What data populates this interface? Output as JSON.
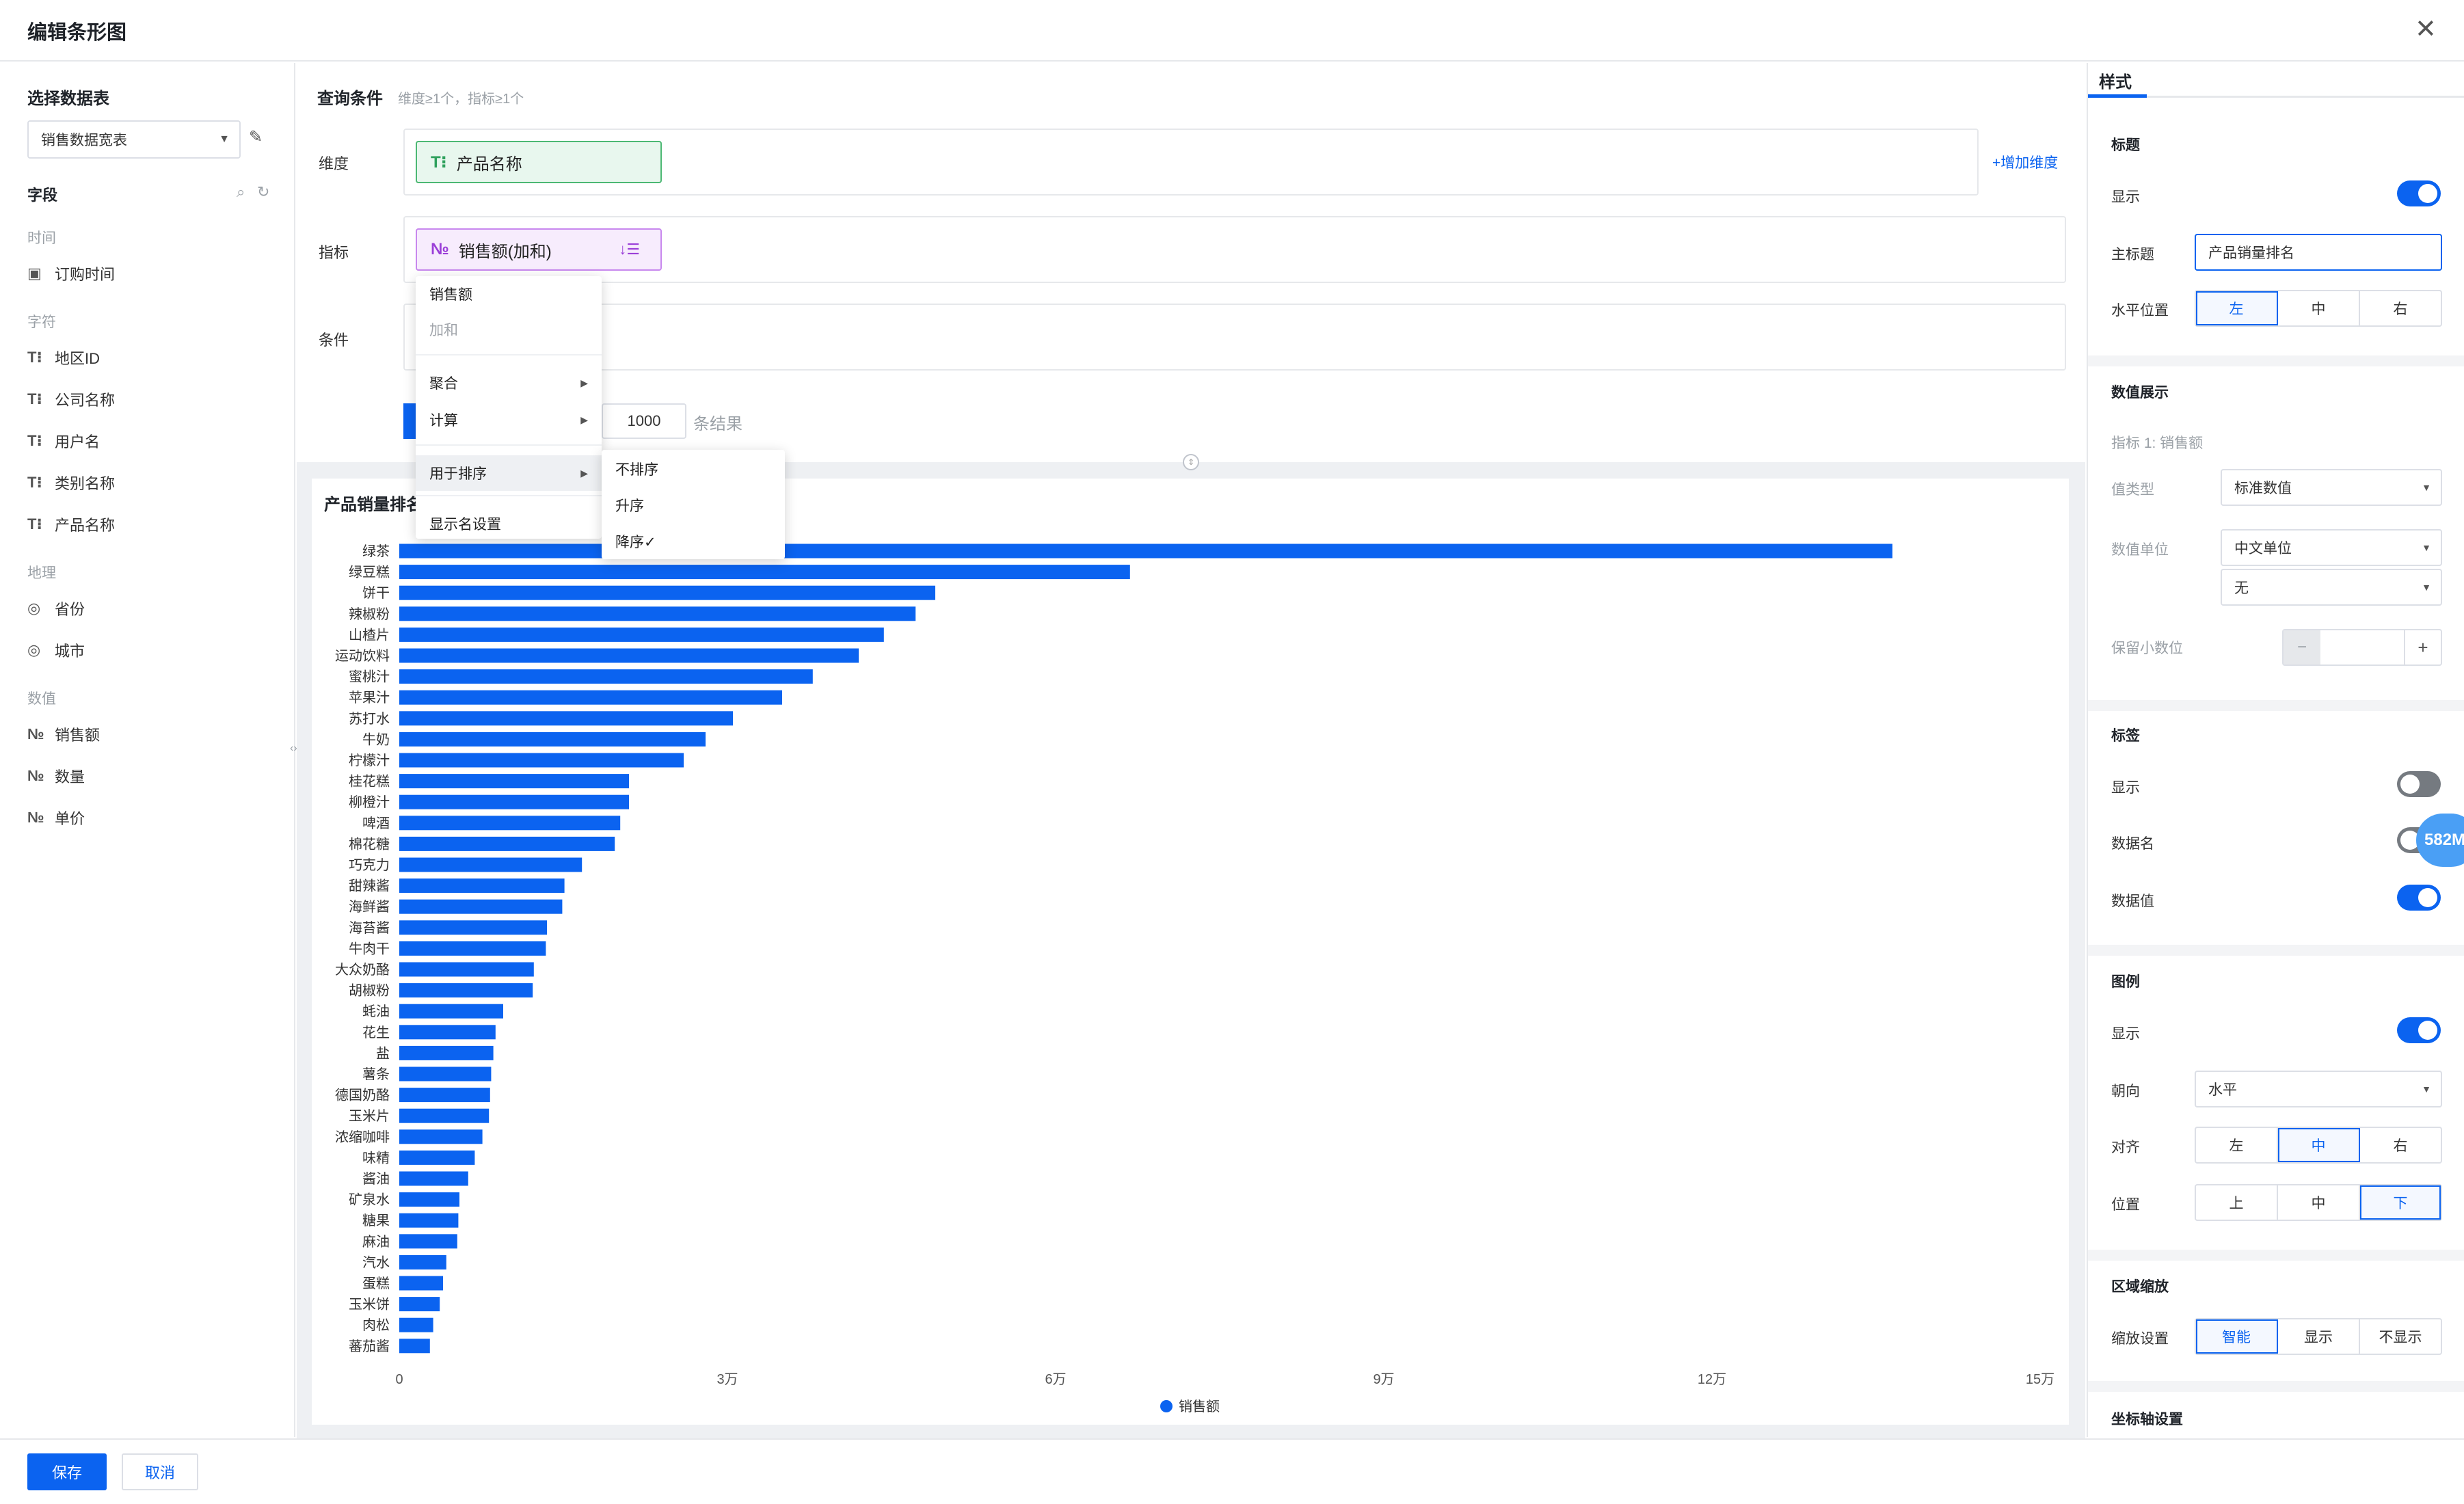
{
  "dialog": {
    "title": "编辑条形图"
  },
  "left": {
    "dataset_title": "选择数据表",
    "dataset_value": "销售数据宽表",
    "fields_title": "字段",
    "groups": [
      {
        "name": "时间",
        "fields": [
          {
            "icon": "calendar-icon",
            "label": "订购时间"
          }
        ]
      },
      {
        "name": "字符",
        "fields": [
          {
            "icon": "text-field-icon",
            "label": "地区ID"
          },
          {
            "icon": "text-field-icon",
            "label": "公司名称"
          },
          {
            "icon": "text-field-icon",
            "label": "用户名"
          },
          {
            "icon": "text-field-icon",
            "label": "类别名称"
          },
          {
            "icon": "text-field-icon",
            "label": "产品名称"
          }
        ]
      },
      {
        "name": "地理",
        "fields": [
          {
            "icon": "location-icon",
            "label": "省份"
          },
          {
            "icon": "location-icon",
            "label": "城市"
          }
        ]
      },
      {
        "name": "数值",
        "fields": [
          {
            "icon": "number-field-icon",
            "label": "销售额"
          },
          {
            "icon": "number-field-icon",
            "label": "数量"
          },
          {
            "icon": "number-field-icon",
            "label": "单价"
          }
        ]
      }
    ]
  },
  "query": {
    "title": "查询条件",
    "hint": "维度≥1个，指标≥1个",
    "dimension_label": "维度",
    "dimension_value": "产品名称",
    "add_dimension": "增加维度",
    "metric_label": "指标",
    "metric_value": "销售额(加和)",
    "condition_label": "条件",
    "limit_value": "1000",
    "limit_suffix": "条结果"
  },
  "metric_menu": {
    "header": "销售额",
    "sub": "加和",
    "items": [
      {
        "label": "聚合",
        "submenu": true
      },
      {
        "label": "计算",
        "submenu": true
      },
      {
        "label": "用于排序",
        "submenu": true
      },
      {
        "label": "显示名设置",
        "submenu": false
      }
    ]
  },
  "sort_menu": {
    "items": [
      {
        "label": "不排序"
      },
      {
        "label": "升序"
      },
      {
        "label": "降序✓"
      }
    ]
  },
  "chart_data": {
    "type": "bar",
    "orientation": "horizontal",
    "title": "产品销量排名",
    "categories": [
      "绿茶",
      "绿豆糕",
      "饼干",
      "辣椒粉",
      "山楂片",
      "运动饮料",
      "蜜桃汁",
      "苹果汁",
      "苏打水",
      "牛奶",
      "柠檬汁",
      "桂花糕",
      "柳橙汁",
      "啤酒",
      "棉花糖",
      "巧克力",
      "甜辣酱",
      "海鲜酱",
      "海苔酱",
      "牛肉干",
      "大众奶酪",
      "胡椒粉",
      "蚝油",
      "花生",
      "盐",
      "薯条",
      "德国奶酪",
      "玉米片",
      "浓缩咖啡",
      "味精",
      "酱油",
      "矿泉水",
      "糖果",
      "麻油",
      "汽水",
      "蛋糕",
      "玉米饼",
      "肉松",
      "蕃茄酱"
    ],
    "series": [
      {
        "name": "销售额",
        "values": [
          136500,
          66800,
          49000,
          47200,
          44300,
          42000,
          37800,
          35000,
          30500,
          28000,
          26000,
          21000,
          21000,
          20200,
          19700,
          16700,
          15100,
          14900,
          13500,
          13400,
          12300,
          12200,
          9500,
          8800,
          8600,
          8400,
          8300,
          8200,
          7600,
          6900,
          6300,
          5500,
          5400,
          5300,
          4300,
          4000,
          3700,
          3100,
          2800
        ]
      }
    ],
    "xlim": [
      0,
      150000
    ],
    "x_ticks": [
      "0",
      "3万",
      "6万",
      "9万",
      "12万",
      "15万"
    ],
    "grid": false,
    "legend": "bottom",
    "bar_color": "#0b63f0"
  },
  "style": {
    "tab": "样式",
    "title_section": "标题",
    "title_show_label": "显示",
    "title_show": true,
    "main_title_label": "主标题",
    "main_title_value": "产品销量排名",
    "hpos_label": "水平位置",
    "hpos_options": [
      "左",
      "中",
      "右"
    ],
    "hpos_selected": 0,
    "value_section": "数值展示",
    "value_metric": "指标 1: 销售额",
    "value_type_label": "值类型",
    "value_type_value": "标准数值",
    "value_unit_label": "数值单位",
    "value_unit_value1": "中文单位",
    "value_unit_value2": "无",
    "decimals_label": "保留小数位",
    "decimals_minus": "−",
    "decimals_plus": "+",
    "label_section": "标签",
    "label_show_label": "显示",
    "label_show": false,
    "label_name_label": "数据名",
    "label_name": false,
    "label_value_label": "数据值",
    "label_value": true,
    "legend_section": "图例",
    "legend_show_label": "显示",
    "legend_show": true,
    "orient_label": "朝向",
    "orient_value": "水平",
    "align_label": "对齐",
    "align_options": [
      "左",
      "中",
      "右"
    ],
    "align_selected": 1,
    "position_label": "位置",
    "position_options": [
      "上",
      "中",
      "下"
    ],
    "position_selected": 2,
    "zoom_section": "区域缩放",
    "zoom_label": "缩放设置",
    "zoom_options": [
      "智能",
      "显示",
      "不显示"
    ],
    "zoom_selected": 0,
    "axis_section": "坐标轴设置",
    "badge": "582M"
  },
  "footer": {
    "save": "保存",
    "cancel": "取消"
  }
}
